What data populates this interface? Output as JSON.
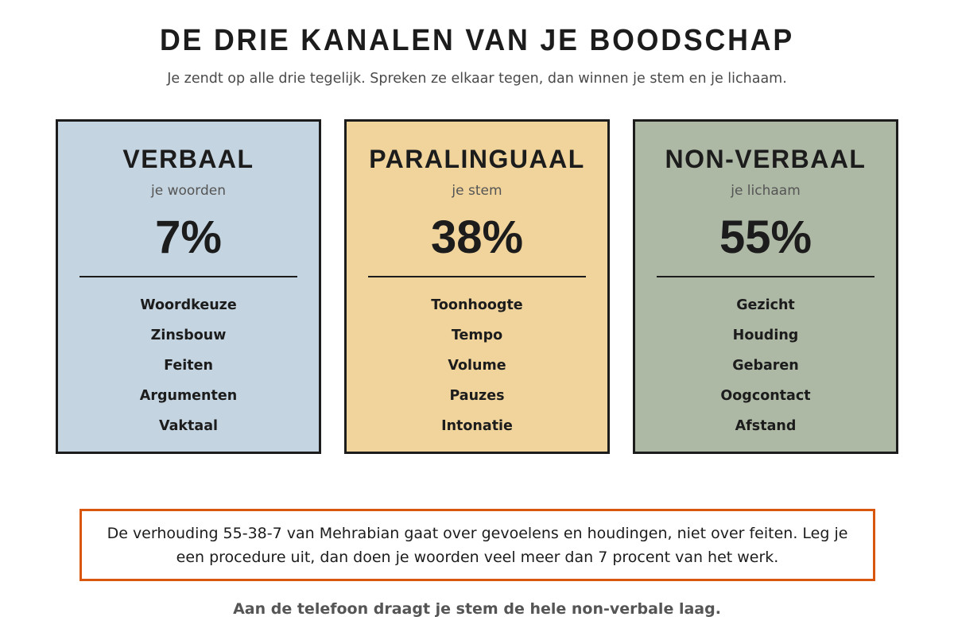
{
  "header": {
    "title": "DE DRIE KANALEN VAN JE BOODSCHAP",
    "subtitle": "Je zendt op alle drie tegelijk. Spreken ze elkaar tegen, dan winnen je stem en je lichaam."
  },
  "channels": [
    {
      "name": "VERBAAL",
      "subtitle": "je woorden",
      "percent": "7%",
      "color": "#c4d4e0",
      "items": [
        "Woordkeuze",
        "Zinsbouw",
        "Feiten",
        "Argumenten",
        "Vaktaal"
      ]
    },
    {
      "name": "PARALINGUAAL",
      "subtitle": "je stem",
      "percent": "38%",
      "color": "#f0d49c",
      "items": [
        "Toonhoogte",
        "Tempo",
        "Volume",
        "Pauzes",
        "Intonatie"
      ]
    },
    {
      "name": "NON-VERBAAL",
      "subtitle": "je lichaam",
      "percent": "55%",
      "color": "#adb9a5",
      "items": [
        "Gezicht",
        "Houding",
        "Gebaren",
        "Oogcontact",
        "Afstand"
      ]
    }
  ],
  "note": {
    "text": "De verhouding 55-38-7 van Mehrabian gaat over gevoelens en houdingen, niet over feiten. Leg je een procedure uit, dan doen je woorden veel meer dan 7 procent van het werk.",
    "border_color": "#d9560f"
  },
  "footer": {
    "text": "Aan de telefoon draagt je stem de hele non-verbale laag."
  }
}
